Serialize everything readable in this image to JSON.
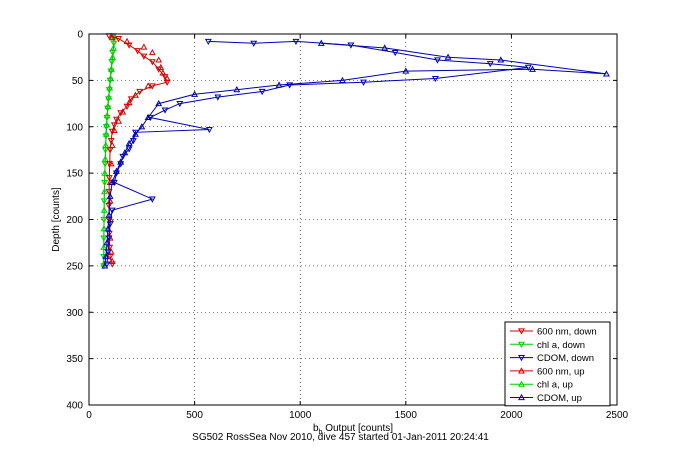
{
  "caption": "SG502 RossSea Nov 2010, dive 457 started 01-Jan-2011 20:24:41",
  "chart_data": {
    "type": "scatter",
    "title": "",
    "xlabel_main": "b",
    "xlabel_sub": "b",
    "xlabel_rest": " Output [counts]",
    "ylabel": "Depth [counts]",
    "xlim": [
      0,
      2500
    ],
    "ylim": [
      0,
      400
    ],
    "y_reversed": true,
    "grid": true,
    "legend_position": "bottom-right",
    "xticks": [
      0,
      500,
      1000,
      1500,
      2000,
      2500
    ],
    "yticks": [
      0,
      50,
      100,
      150,
      200,
      250,
      300,
      350,
      400
    ],
    "series": [
      {
        "name": "600 nm, down",
        "color": "#d40000",
        "marker": "triangle-down",
        "line": true,
        "points": [
          [
            95,
            2
          ],
          [
            140,
            5
          ],
          [
            190,
            12
          ],
          [
            230,
            18
          ],
          [
            260,
            24
          ],
          [
            300,
            30
          ],
          [
            330,
            38
          ],
          [
            360,
            46
          ],
          [
            370,
            52
          ],
          [
            300,
            56
          ],
          [
            240,
            62
          ],
          [
            200,
            70
          ],
          [
            180,
            78
          ],
          [
            150,
            85
          ],
          [
            130,
            92
          ],
          [
            120,
            98
          ],
          [
            110,
            105
          ],
          [
            105,
            115
          ],
          [
            100,
            125
          ],
          [
            98,
            140
          ],
          [
            96,
            155
          ],
          [
            95,
            170
          ],
          [
            94,
            185
          ],
          [
            95,
            200
          ],
          [
            96,
            215
          ],
          [
            98,
            230
          ],
          [
            100,
            240
          ],
          [
            110,
            248
          ]
        ]
      },
      {
        "name": "chl a, down",
        "color": "#00cc00",
        "marker": "triangle-down",
        "line": true,
        "points": [
          [
            115,
            2
          ],
          [
            118,
            10
          ],
          [
            112,
            20
          ],
          [
            108,
            30
          ],
          [
            104,
            40
          ],
          [
            100,
            50
          ],
          [
            96,
            60
          ],
          [
            92,
            70
          ],
          [
            88,
            80
          ],
          [
            85,
            90
          ],
          [
            82,
            100
          ],
          [
            80,
            110
          ],
          [
            78,
            125
          ],
          [
            76,
            140
          ],
          [
            74,
            160
          ],
          [
            72,
            180
          ],
          [
            71,
            200
          ],
          [
            70,
            220
          ],
          [
            70,
            240
          ],
          [
            70,
            250
          ]
        ]
      },
      {
        "name": "CDOM, down",
        "color": "#0000b4",
        "marker": "triangle-down",
        "line": true,
        "points": [
          [
            565,
            8
          ],
          [
            780,
            10
          ],
          [
            980,
            8
          ],
          [
            1240,
            12
          ],
          [
            1450,
            20
          ],
          [
            1650,
            28
          ],
          [
            1900,
            32
          ],
          [
            2080,
            36
          ],
          [
            1640,
            48
          ],
          [
            1300,
            52
          ],
          [
            950,
            55
          ],
          [
            820,
            62
          ],
          [
            610,
            68
          ],
          [
            430,
            75
          ],
          [
            360,
            82
          ],
          [
            290,
            90
          ],
          [
            570,
            103
          ],
          [
            220,
            106
          ],
          [
            210,
            115
          ],
          [
            190,
            124
          ],
          [
            160,
            132
          ],
          [
            150,
            140
          ],
          [
            130,
            150
          ],
          [
            120,
            160
          ],
          [
            300,
            178
          ],
          [
            110,
            190
          ],
          [
            100,
            205
          ],
          [
            95,
            220
          ],
          [
            90,
            235
          ],
          [
            85,
            248
          ]
        ]
      },
      {
        "name": "600 nm, up",
        "color": "#d40000",
        "marker": "triangle-up",
        "line": false,
        "points": [
          [
            110,
            4
          ],
          [
            180,
            8
          ],
          [
            260,
            14
          ],
          [
            300,
            20
          ],
          [
            330,
            28
          ],
          [
            340,
            36
          ],
          [
            350,
            42
          ],
          [
            370,
            48
          ],
          [
            280,
            56
          ],
          [
            220,
            66
          ],
          [
            190,
            74
          ],
          [
            160,
            84
          ],
          [
            140,
            94
          ],
          [
            120,
            104
          ],
          [
            110,
            120
          ],
          [
            105,
            140
          ],
          [
            100,
            160
          ],
          [
            100,
            180
          ],
          [
            102,
            200
          ],
          [
            100,
            220
          ],
          [
            105,
            235
          ],
          [
            110,
            245
          ]
        ]
      },
      {
        "name": "chl a, up",
        "color": "#00cc00",
        "marker": "triangle-up",
        "line": true,
        "points": [
          [
            120,
            3
          ],
          [
            116,
            15
          ],
          [
            112,
            25
          ],
          [
            106,
            38
          ],
          [
            102,
            48
          ],
          [
            98,
            58
          ],
          [
            94,
            68
          ],
          [
            90,
            78
          ],
          [
            86,
            88
          ],
          [
            84,
            98
          ],
          [
            82,
            108
          ],
          [
            79,
            120
          ],
          [
            77,
            135
          ],
          [
            75,
            150
          ],
          [
            73,
            170
          ],
          [
            72,
            190
          ],
          [
            71,
            210
          ],
          [
            70,
            230
          ],
          [
            70,
            248
          ]
        ]
      },
      {
        "name": "CDOM, up",
        "color": "#0000b4",
        "marker": "triangle-up",
        "line": true,
        "points": [
          [
            1100,
            10
          ],
          [
            1400,
            15
          ],
          [
            1700,
            25
          ],
          [
            1950,
            28
          ],
          [
            2450,
            43
          ],
          [
            2100,
            38
          ],
          [
            1500,
            40
          ],
          [
            1200,
            50
          ],
          [
            900,
            55
          ],
          [
            700,
            60
          ],
          [
            500,
            65
          ],
          [
            330,
            75
          ],
          [
            280,
            90
          ],
          [
            250,
            100
          ],
          [
            220,
            108
          ],
          [
            190,
            118
          ],
          [
            170,
            128
          ],
          [
            150,
            138
          ],
          [
            130,
            148
          ],
          [
            110,
            160
          ],
          [
            100,
            175
          ],
          [
            95,
            195
          ],
          [
            90,
            210
          ],
          [
            85,
            225
          ],
          [
            80,
            240
          ],
          [
            75,
            250
          ]
        ]
      }
    ]
  }
}
